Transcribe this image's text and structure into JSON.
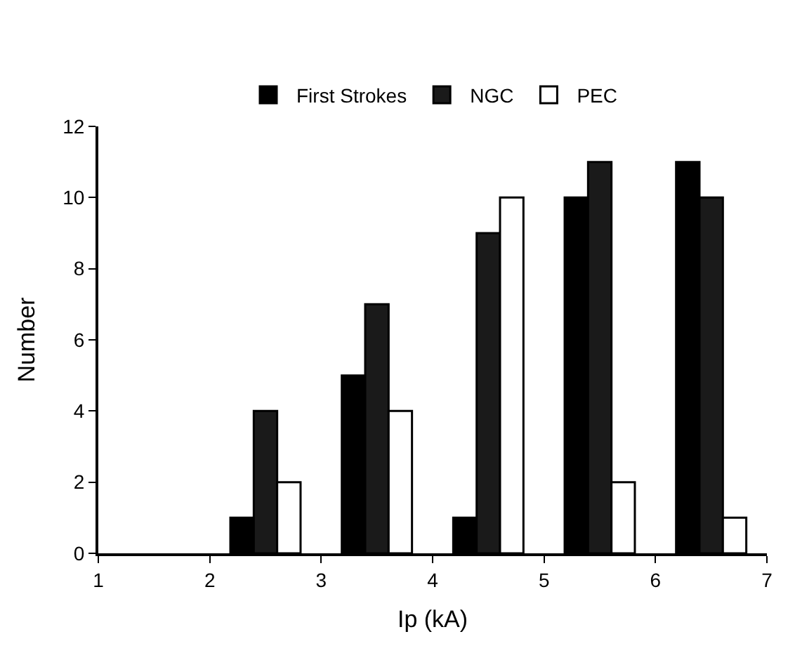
{
  "chart_data": {
    "type": "bar",
    "xlabel": "Ip (kA)",
    "ylabel": "Number",
    "x": [
      2.5,
      3.5,
      4.5,
      5.5,
      6.5
    ],
    "series": [
      {
        "name": "First Strokes",
        "color": "#000000",
        "values": [
          1,
          5,
          1,
          10,
          11
        ]
      },
      {
        "name": "NGC",
        "color": "#1a1a1a",
        "values": [
          4,
          7,
          9,
          11,
          10
        ]
      },
      {
        "name": "PEC",
        "color": "#ffffff",
        "values": [
          2,
          4,
          10,
          2,
          1
        ]
      }
    ],
    "xlim": [
      1,
      7
    ],
    "xticks": [
      1,
      2,
      3,
      4,
      5,
      6,
      7
    ],
    "ylim": [
      0,
      12
    ],
    "yticks": [
      0,
      2,
      4,
      6,
      8,
      10,
      12
    ],
    "legend": "top"
  }
}
